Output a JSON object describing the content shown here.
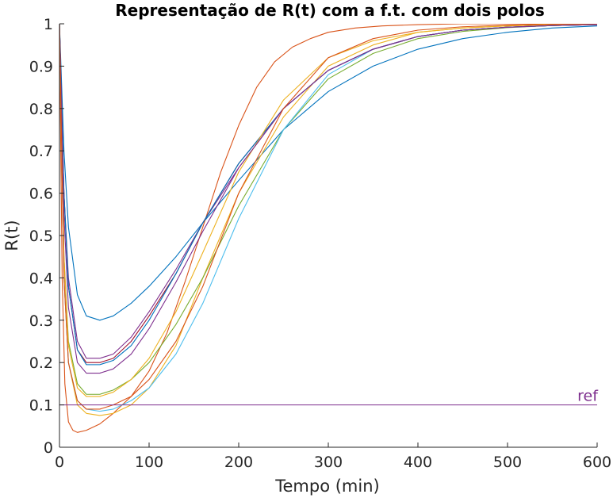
{
  "chart_data": {
    "type": "line",
    "title": "Representação de R(t) com a f.t. com dois polos",
    "xlabel": "Tempo (min)",
    "ylabel": "R(t)",
    "xlim": [
      0,
      600
    ],
    "ylim": [
      0,
      1
    ],
    "xticks": [
      "0",
      "100",
      "200",
      "300",
      "400",
      "500",
      "600"
    ],
    "yticks": [
      "0",
      "0.1",
      "0.2",
      "0.3",
      "0.4",
      "0.5",
      "0.6",
      "0.7",
      "0.8",
      "0.9",
      "1"
    ],
    "grid": false,
    "annotation": {
      "text": "ref",
      "x": 578,
      "y": 0.1,
      "color": "#7E2F8E"
    },
    "reference": {
      "y": 0.1,
      "color": "#7E2F8E"
    },
    "series": [
      {
        "color": "#0072BD",
        "x": [
          0,
          5,
          10,
          20,
          30,
          45,
          60,
          80,
          100,
          130,
          160,
          200,
          250,
          300,
          350,
          400,
          450,
          500,
          550,
          600
        ],
        "y": [
          1,
          0.7,
          0.52,
          0.36,
          0.31,
          0.3,
          0.31,
          0.34,
          0.38,
          0.45,
          0.53,
          0.63,
          0.75,
          0.84,
          0.9,
          0.94,
          0.965,
          0.98,
          0.99,
          0.995
        ]
      },
      {
        "color": "#D95319",
        "x": [
          0,
          3,
          6,
          10,
          15,
          20,
          30,
          45,
          60,
          80,
          100,
          120,
          140,
          160,
          180,
          200,
          220,
          240,
          260,
          280,
          300,
          330,
          360,
          400,
          450,
          500,
          550,
          600
        ],
        "y": [
          1,
          0.4,
          0.15,
          0.06,
          0.04,
          0.035,
          0.04,
          0.055,
          0.08,
          0.12,
          0.18,
          0.27,
          0.39,
          0.52,
          0.65,
          0.76,
          0.85,
          0.91,
          0.945,
          0.965,
          0.98,
          0.99,
          0.995,
          0.998,
          1,
          1,
          1,
          1
        ]
      },
      {
        "color": "#EDB120",
        "x": [
          0,
          5,
          10,
          20,
          30,
          45,
          60,
          80,
          100,
          130,
          160,
          200,
          250,
          300,
          350,
          400,
          450,
          500,
          550,
          600
        ],
        "y": [
          1,
          0.4,
          0.2,
          0.1,
          0.08,
          0.075,
          0.08,
          0.1,
          0.14,
          0.24,
          0.4,
          0.6,
          0.78,
          0.9,
          0.95,
          0.98,
          0.99,
          0.995,
          1,
          1
        ]
      },
      {
        "color": "#7E2F8E",
        "x": [
          0,
          5,
          10,
          20,
          30,
          45,
          60,
          80,
          100,
          130,
          160,
          200,
          250,
          300,
          350,
          400,
          450,
          500,
          550,
          600
        ],
        "y": [
          1,
          0.6,
          0.4,
          0.25,
          0.21,
          0.21,
          0.22,
          0.26,
          0.32,
          0.42,
          0.53,
          0.66,
          0.8,
          0.89,
          0.94,
          0.97,
          0.985,
          0.992,
          0.996,
          0.998
        ]
      },
      {
        "color": "#77AC30",
        "x": [
          0,
          5,
          10,
          20,
          30,
          45,
          60,
          80,
          100,
          130,
          160,
          200,
          250,
          300,
          350,
          400,
          450,
          500,
          550,
          600
        ],
        "y": [
          1,
          0.45,
          0.25,
          0.15,
          0.125,
          0.125,
          0.135,
          0.16,
          0.2,
          0.29,
          0.4,
          0.57,
          0.75,
          0.87,
          0.93,
          0.965,
          0.982,
          0.991,
          0.996,
          0.998
        ]
      },
      {
        "color": "#4DBEEE",
        "x": [
          0,
          5,
          10,
          20,
          30,
          45,
          60,
          80,
          100,
          130,
          160,
          200,
          250,
          300,
          350,
          400,
          450,
          500,
          550,
          600
        ],
        "y": [
          1,
          0.4,
          0.2,
          0.11,
          0.09,
          0.085,
          0.09,
          0.11,
          0.14,
          0.22,
          0.34,
          0.54,
          0.75,
          0.88,
          0.94,
          0.97,
          0.985,
          0.992,
          0.996,
          0.998
        ]
      },
      {
        "color": "#A2142F",
        "x": [
          0,
          5,
          10,
          20,
          30,
          45,
          60,
          80,
          100,
          130,
          160,
          200,
          250,
          300,
          350,
          400,
          450,
          500,
          550,
          600
        ],
        "y": [
          1,
          0.6,
          0.38,
          0.23,
          0.2,
          0.2,
          0.21,
          0.25,
          0.31,
          0.41,
          0.53,
          0.67,
          0.8,
          0.89,
          0.94,
          0.97,
          0.985,
          0.992,
          0.996,
          0.998
        ]
      },
      {
        "color": "#0072BD",
        "x": [
          0,
          5,
          10,
          20,
          30,
          45,
          60,
          80,
          100,
          130,
          160,
          200,
          250,
          300,
          350,
          400,
          450,
          500,
          550,
          600
        ],
        "y": [
          1,
          0.6,
          0.38,
          0.23,
          0.195,
          0.195,
          0.205,
          0.24,
          0.3,
          0.41,
          0.53,
          0.67,
          0.8,
          0.89,
          0.94,
          0.97,
          0.985,
          0.992,
          0.996,
          0.998
        ]
      },
      {
        "color": "#EDB120",
        "x": [
          0,
          5,
          10,
          20,
          30,
          45,
          60,
          80,
          100,
          130,
          160,
          200,
          250,
          300,
          350,
          400,
          450,
          500,
          550,
          600
        ],
        "y": [
          1,
          0.45,
          0.24,
          0.14,
          0.12,
          0.12,
          0.13,
          0.16,
          0.21,
          0.32,
          0.46,
          0.65,
          0.82,
          0.92,
          0.96,
          0.98,
          0.99,
          0.995,
          0.998,
          1
        ]
      },
      {
        "color": "#7E2F8E",
        "x": [
          0,
          5,
          10,
          20,
          30,
          45,
          60,
          80,
          100,
          130,
          160,
          200,
          250,
          300,
          350,
          400,
          450,
          500,
          550,
          600
        ],
        "y": [
          1,
          0.55,
          0.33,
          0.2,
          0.175,
          0.175,
          0.185,
          0.22,
          0.28,
          0.39,
          0.51,
          0.66,
          0.8,
          0.89,
          0.94,
          0.97,
          0.985,
          0.992,
          0.996,
          0.998
        ]
      },
      {
        "color": "#D95319",
        "x": [
          0,
          5,
          10,
          20,
          30,
          45,
          60,
          80,
          100,
          130,
          160,
          200,
          250,
          300,
          350,
          400,
          450,
          500,
          550,
          600
        ],
        "y": [
          1,
          0.4,
          0.2,
          0.11,
          0.09,
          0.09,
          0.1,
          0.12,
          0.16,
          0.25,
          0.38,
          0.6,
          0.8,
          0.92,
          0.965,
          0.985,
          0.993,
          0.997,
          0.999,
          1
        ]
      }
    ]
  }
}
